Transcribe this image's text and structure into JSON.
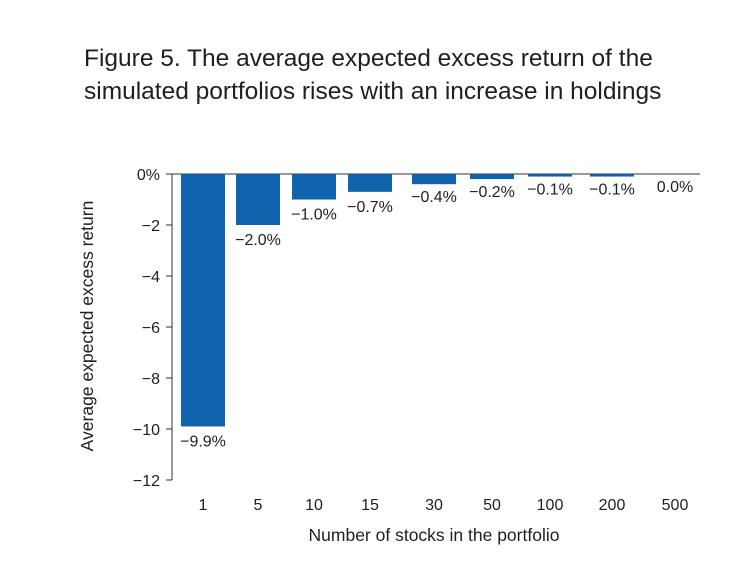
{
  "title": "Figure 5. The average expected excess return of the simulated portfolios rises with an increase in holdings",
  "colors": {
    "bar": "#0f64ad",
    "text": "#1f1f1f",
    "axis": "#333333"
  },
  "chart_data": {
    "type": "bar",
    "title": "Figure 5. The average expected excess return of the simulated portfolios rises with an increase in holdings",
    "xlabel": "Number of stocks in the portfolio",
    "ylabel": "Average expected excess return",
    "categories": [
      "1",
      "5",
      "10",
      "15",
      "30",
      "50",
      "100",
      "200",
      "500"
    ],
    "values": [
      -9.9,
      -2.0,
      -1.0,
      -0.7,
      -0.4,
      -0.2,
      -0.1,
      -0.1,
      0.0
    ],
    "data_labels": [
      "−9.9%",
      "−2.0%",
      "−1.0%",
      "−0.7%",
      "−0.4%",
      "−0.2%",
      "−0.1%",
      "−0.1%",
      "0.0%"
    ],
    "ylim": [
      -12,
      0
    ],
    "yticks": [
      0,
      -2,
      -4,
      -6,
      -8,
      -10,
      -12
    ],
    "ytick_labels": [
      "0%",
      "−2",
      "−4",
      "−6",
      "−8",
      "−10",
      "−12"
    ],
    "grid": false,
    "legend": "none"
  }
}
